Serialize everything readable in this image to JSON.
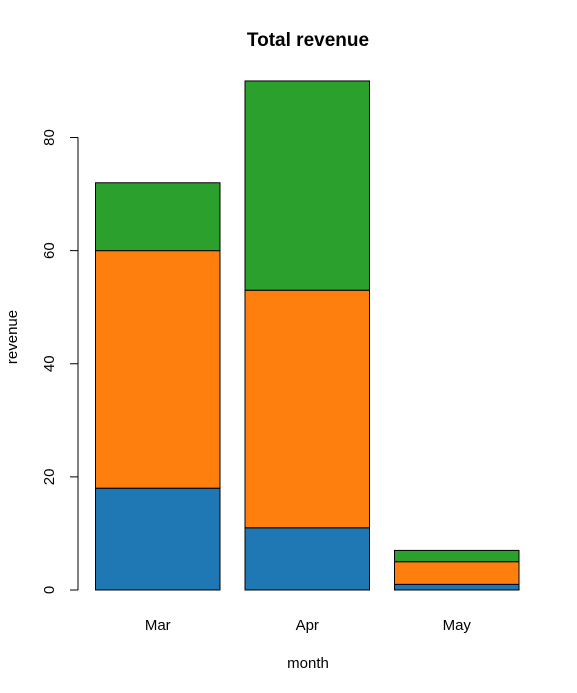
{
  "chart_data": {
    "type": "bar",
    "stacked": true,
    "title": "Total revenue",
    "xlabel": "month",
    "ylabel": "revenue",
    "categories": [
      "Mar",
      "Apr",
      "May"
    ],
    "series": [
      {
        "values": [
          18,
          11,
          1
        ],
        "color": "#1f77b4"
      },
      {
        "values": [
          42,
          42,
          4
        ],
        "color": "#ff7f0e"
      },
      {
        "values": [
          12,
          37,
          2
        ],
        "color": "#2ca02c"
      }
    ],
    "yticks": [
      0,
      20,
      40,
      60,
      80
    ],
    "ylim": [
      0,
      90
    ],
    "grid": false,
    "legend": "none"
  }
}
